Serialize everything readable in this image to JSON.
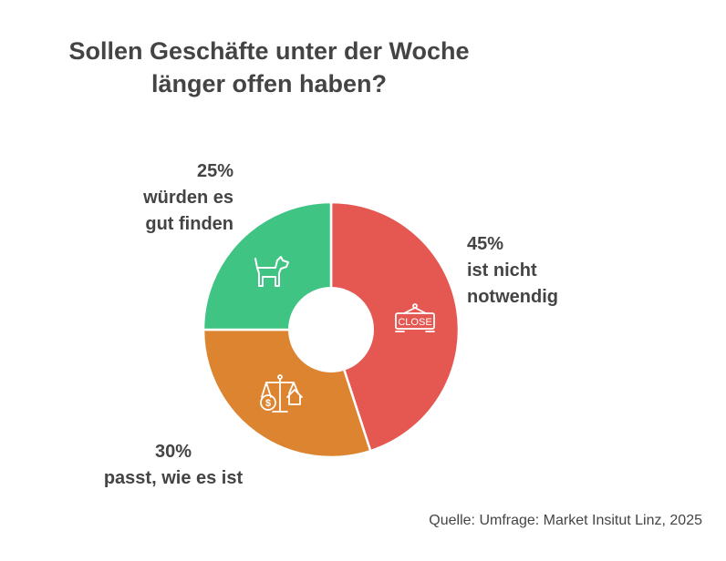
{
  "title": {
    "line1": "Sollen Geschäfte unter der Woche",
    "line2": "länger offen haben?"
  },
  "source": "Quelle: Umfrage: Market Insitut Linz, 2025",
  "chart_data": {
    "type": "pie",
    "donut": true,
    "start": "top",
    "direction": "clockwise",
    "slices": [
      {
        "value": 45,
        "value_label": "45%",
        "label_lines": [
          "ist nicht",
          "notwendig"
        ],
        "color": "#e55852",
        "icon": "close-sign-icon",
        "icon_text": "CLOSE"
      },
      {
        "value": 30,
        "value_label": "30%",
        "label_lines": [
          "passt, wie es ist"
        ],
        "color": "#dd8431",
        "icon": "scale-money-house-icon"
      },
      {
        "value": 25,
        "value_label": "25%",
        "label_lines": [
          "würden es",
          "gut finden"
        ],
        "color": "#3fc484",
        "icon": "dog-icon"
      }
    ]
  }
}
